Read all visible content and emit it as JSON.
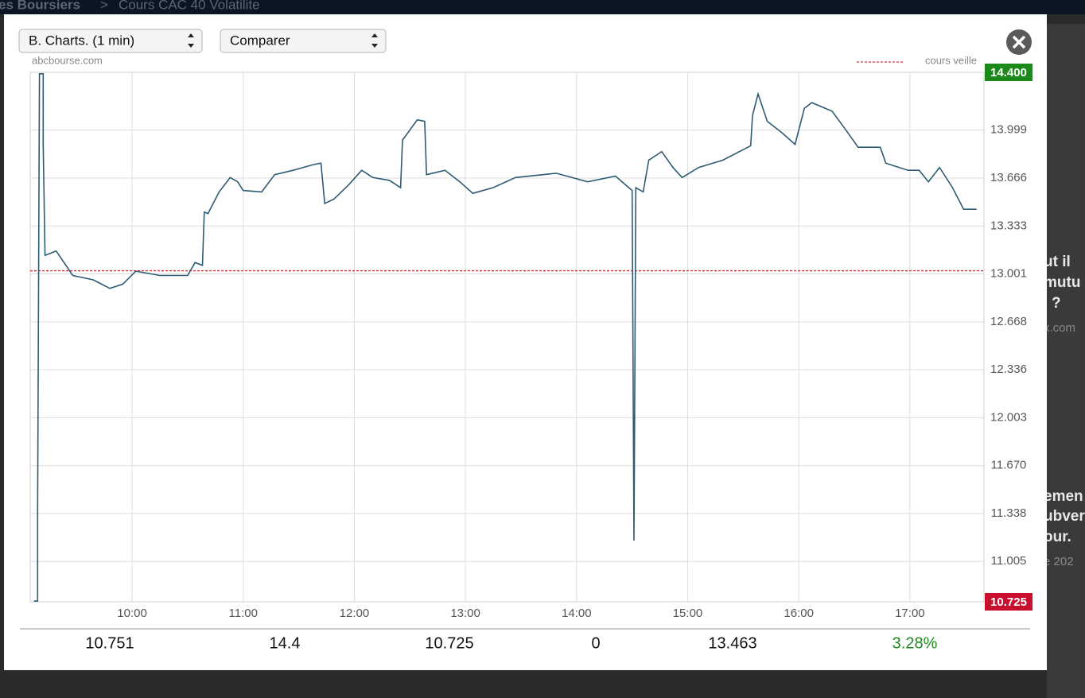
{
  "ui": {
    "breadcrumb": [
      "es Boursiers",
      ">",
      "Cours CAC 40 Volatilite"
    ],
    "selects": [
      "B. Charts. (1 min)",
      "Comparer"
    ],
    "source": "abcbourse.com",
    "stats": [
      "10.751",
      "14.4",
      "10.725",
      "0",
      "13.463",
      "3.28%"
    ],
    "side_texts": [
      "ut il",
      "mutu",
      "?",
      "x.com",
      "emen",
      "ubver",
      "our.",
      "e 202"
    ]
  },
  "chart_data": {
    "type": "line",
    "x": [
      "09:07",
      "09:09",
      "09:09",
      "09:10",
      "09:12",
      "09:12",
      "09:13",
      "09:19",
      "09:28",
      "09:39",
      "09:48",
      "09:55",
      "10:02",
      "10:15",
      "10:30",
      "10:34",
      "10:38",
      "10:39",
      "10:41",
      "10:47",
      "10:53",
      "10:57",
      "11:00",
      "11:10",
      "11:17",
      "11:27",
      "11:38",
      "11:42",
      "11:44",
      "11:49",
      "11:57",
      "12:04",
      "12:10",
      "12:19",
      "12:25",
      "12:26",
      "12:34",
      "12:38",
      "12:39",
      "12:49",
      "12:57",
      "13:04",
      "13:15",
      "13:27",
      "13:49",
      "14:06",
      "14:21",
      "14:30",
      "14:31",
      "14:32",
      "14:36",
      "14:39",
      "14:46",
      "14:52",
      "14:57",
      "15:06",
      "15:19",
      "15:34",
      "15:35",
      "15:38",
      "15:43",
      "15:51",
      "15:58",
      "16:03",
      "16:07",
      "16:18",
      "16:26",
      "16:32",
      "16:44",
      "16:47",
      "16:59",
      "17:05",
      "17:10",
      "17:16",
      "17:23",
      "17:29",
      "17:36"
    ],
    "series": [
      {
        "name": "CAC 40 Volatilite",
        "color": "#2d5b72",
        "values": [
          10.73,
          10.73,
          11.35,
          14.39,
          14.39,
          13.9,
          13.13,
          13.16,
          12.99,
          12.96,
          12.9,
          12.93,
          13.02,
          12.99,
          12.99,
          13.08,
          13.06,
          13.43,
          13.42,
          13.57,
          13.67,
          13.64,
          13.58,
          13.57,
          13.69,
          13.72,
          13.76,
          13.77,
          13.49,
          13.52,
          13.62,
          13.72,
          13.67,
          13.65,
          13.6,
          13.93,
          14.07,
          14.06,
          13.69,
          13.72,
          13.64,
          13.56,
          13.6,
          13.67,
          13.7,
          13.64,
          13.68,
          13.58,
          11.15,
          13.6,
          13.57,
          13.79,
          13.85,
          13.74,
          13.67,
          13.74,
          13.79,
          13.89,
          14.1,
          14.25,
          14.06,
          13.98,
          13.9,
          14.15,
          14.19,
          14.13,
          13.99,
          13.88,
          13.88,
          13.77,
          13.72,
          13.72,
          13.64,
          13.74,
          13.6,
          13.45,
          13.45
        ]
      }
    ],
    "xlim": [
      "09:05",
      "17:40"
    ],
    "xticks": [
      "10:00",
      "11:00",
      "12:00",
      "13:00",
      "14:00",
      "15:00",
      "16:00",
      "17:00"
    ],
    "ylim": [
      10.725,
      14.4
    ],
    "yticks": [
      11.005,
      11.338,
      {
        "value": 11.67,
        "label": "11.670"
      },
      12.003,
      12.336,
      12.668,
      13.001,
      13.333,
      13.666,
      13.999
    ],
    "y_extremes": [
      {
        "value": 14.4,
        "label": "14.400",
        "color": "#1b8a1b"
      },
      {
        "value": 10.725,
        "label": "10.725",
        "color": "#c8102e"
      }
    ],
    "reference_line": {
      "value": 13.023,
      "label": "cours veille",
      "color": "#e03030"
    },
    "grid": true
  }
}
